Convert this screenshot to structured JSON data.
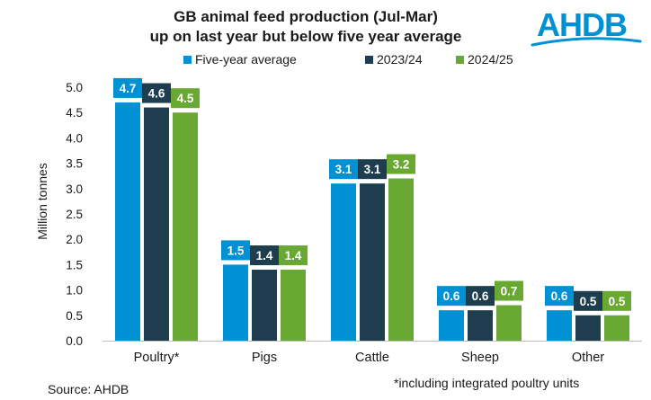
{
  "chart_data": {
    "type": "bar",
    "title_lines": [
      "GB animal feed production (Jul-Mar)",
      "up on last year but below five year average"
    ],
    "categories": [
      "Poultry*",
      "Pigs",
      "Cattle",
      "Sheep",
      "Other"
    ],
    "series": [
      {
        "name": "Five-year average",
        "color": "#0090d4",
        "values": [
          4.7,
          1.5,
          3.1,
          0.6,
          0.6
        ],
        "labels": [
          "4.7",
          "1.5",
          "3.1",
          "0.6",
          "0.6"
        ]
      },
      {
        "name": "2023/24",
        "color": "#1e3d4f",
        "values": [
          4.6,
          1.4,
          3.1,
          0.6,
          0.5
        ],
        "labels": [
          "4.6",
          "1.4",
          "3.1",
          "0.6",
          "0.5"
        ]
      },
      {
        "name": "2024/25",
        "color": "#69a933",
        "values": [
          4.5,
          1.4,
          3.2,
          0.7,
          0.5
        ],
        "labels": [
          "4.5",
          "1.4",
          "3.2",
          "0.7",
          "0.5"
        ]
      }
    ],
    "ylabel": "Million tonnes",
    "xlabel": "",
    "ylim": [
      0,
      5
    ],
    "yticks": [
      "0.0",
      "0.5",
      "1.0",
      "1.5",
      "2.0",
      "2.5",
      "3.0",
      "3.5",
      "4.0",
      "4.5",
      "5.0"
    ],
    "legend_position": "top",
    "grid": false
  },
  "footer": {
    "source": "Source: AHDB",
    "footnote": "*including integrated poultry units"
  },
  "logo": {
    "text": "AHDB",
    "color": "#0090d4"
  }
}
